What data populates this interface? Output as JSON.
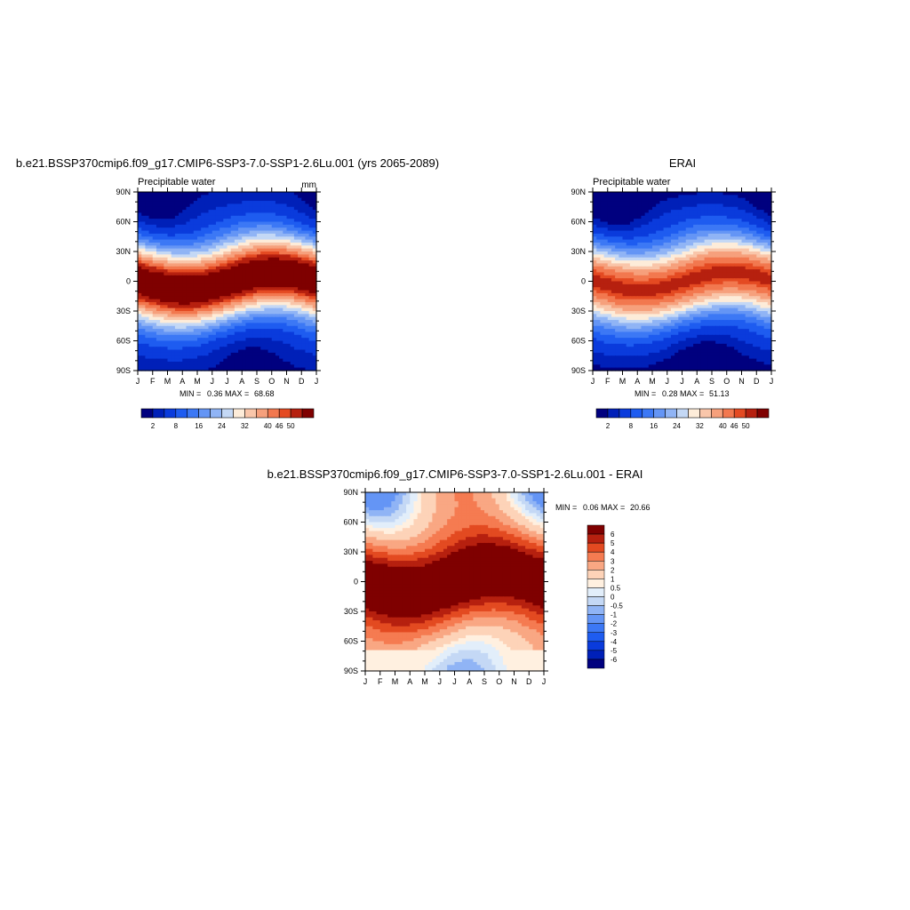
{
  "colors": {
    "blue_red_14": [
      "#00007f",
      "#0020b8",
      "#0a3bdc",
      "#1e5cf0",
      "#3c78f5",
      "#6495f5",
      "#90b4f5",
      "#c4d8f5",
      "#fdecd9",
      "#f9c6aa",
      "#f6a07c",
      "#f2784f",
      "#e44a22",
      "#b6200f",
      "#7f0000"
    ],
    "diff_scale": [
      "#00007f",
      "#0020b8",
      "#0a3bdc",
      "#1e5cf0",
      "#3c78f5",
      "#6495f5",
      "#90b4f5",
      "#c4d8f5",
      "#e2eefa",
      "#fff0e0",
      "#fdd3b8",
      "#f9a783",
      "#f57b51",
      "#e34a21",
      "#b6200f",
      "#7f0000"
    ]
  },
  "chart_data": [
    {
      "type": "heatmap",
      "title": "b.e21.BSSP370cmip6.f09_g17.CMIP6-SSP3-7.0-SSP1-2.6Lu.001 (yrs 2065-2089)",
      "left_label": "Precipitable water",
      "right_label": "mm",
      "x_ticks": [
        "J",
        "F",
        "M",
        "A",
        "M",
        "J",
        "J",
        "A",
        "S",
        "O",
        "N",
        "D",
        "J"
      ],
      "y_ticks": [
        "90N",
        "60N",
        "30N",
        "0",
        "30S",
        "60S",
        "90S"
      ],
      "min_label": "MIN =",
      "min_value": "0.36",
      "max_label": "MAX =",
      "max_value": "68.68",
      "colorbar_labels": [
        "2",
        "8",
        "16",
        "24",
        "32",
        "40",
        "46",
        "50"
      ],
      "field": {
        "equator_max": 56,
        "polar_min": 1.5,
        "itcz_amp": 9
      }
    },
    {
      "type": "heatmap",
      "title": "ERAI",
      "left_label": "Precipitable water",
      "right_label": "",
      "x_ticks": [
        "J",
        "F",
        "M",
        "A",
        "M",
        "J",
        "J",
        "A",
        "S",
        "O",
        "N",
        "D",
        "J"
      ],
      "y_ticks": [
        "90N",
        "60N",
        "30N",
        "0",
        "30S",
        "60S",
        "90S"
      ],
      "min_label": "MIN =",
      "min_value": "0.28",
      "max_label": "MAX =",
      "max_value": "51.13",
      "colorbar_labels": [
        "2",
        "8",
        "16",
        "24",
        "32",
        "40",
        "46",
        "50"
      ],
      "field": {
        "equator_max": 47,
        "polar_min": 1.0,
        "itcz_amp": 9
      }
    },
    {
      "type": "heatmap",
      "title": "b.e21.BSSP370cmip6.f09_g17.CMIP6-SSP3-7.0-SSP1-2.6Lu.001 - ERAI",
      "x_ticks": [
        "J",
        "F",
        "M",
        "A",
        "M",
        "J",
        "J",
        "A",
        "S",
        "O",
        "N",
        "D",
        "J"
      ],
      "y_ticks": [
        "90N",
        "60N",
        "30N",
        "0",
        "30S",
        "60S",
        "90S"
      ],
      "min_label": "MIN =",
      "min_value": "0.06",
      "max_label": "MAX =",
      "max_value": "20.66",
      "colorbar_labels": [
        "6",
        "5",
        "4",
        "3",
        "2",
        "1",
        "0.5",
        "0",
        "-0.5",
        "-1",
        "-2",
        "-3",
        "-4",
        "-5",
        "-6"
      ]
    }
  ]
}
